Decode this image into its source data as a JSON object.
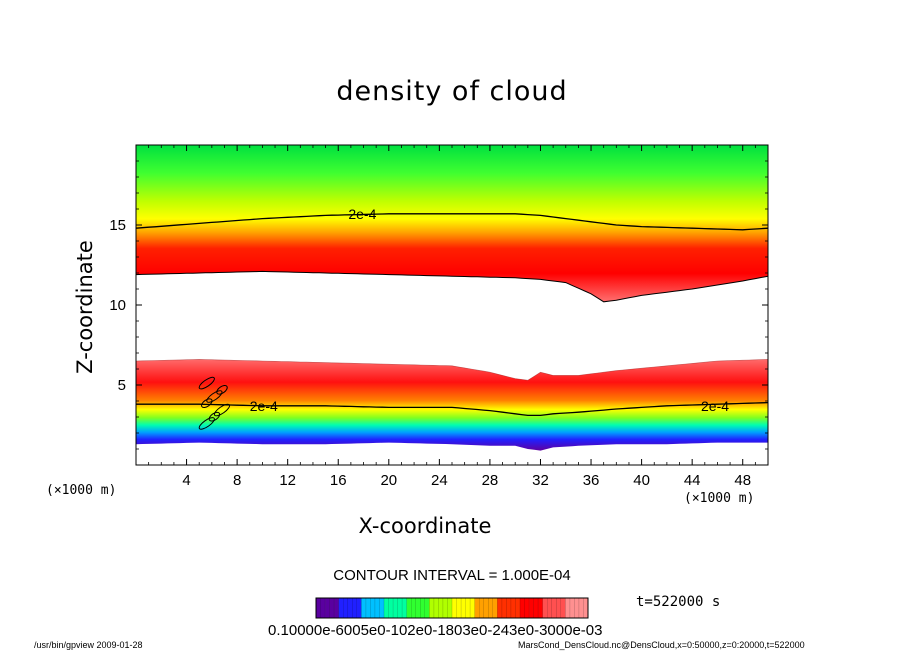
{
  "chart_data": {
    "type": "heatmap",
    "title": "density of cloud",
    "xlabel": "X-coordinate",
    "ylabel": "Z-coordinate",
    "x_unit": "(×1000 m)",
    "xlim": [
      0,
      50
    ],
    "ylim": [
      0,
      20
    ],
    "x_ticks": [
      4,
      8,
      12,
      16,
      20,
      24,
      28,
      32,
      36,
      40,
      44,
      48
    ],
    "y_ticks": [
      5,
      10,
      15
    ],
    "contour_interval": "CONTOUR INTERVAL = 1.000E-04",
    "contour_labels": [
      "2e-4",
      "2e-4",
      "2e-4"
    ],
    "time_label": "t=522000 s",
    "colorbar_labels": "0.10000e-6005e0-102e0-1803e0-243e0-3000e-03",
    "colorbar_range": [
      1e-07,
      0.0003
    ],
    "upper_layer": {
      "x": [
        0,
        5,
        10,
        15,
        20,
        25,
        30,
        32,
        34,
        36,
        37,
        38,
        40,
        44,
        48,
        50
      ],
      "z_contour_2e4": [
        14.8,
        15.1,
        15.4,
        15.6,
        15.7,
        15.7,
        15.7,
        15.6,
        15.4,
        15.2,
        15.1,
        15.0,
        14.9,
        14.8,
        14.7,
        14.8
      ],
      "z_bottom": [
        11.9,
        12.0,
        12.1,
        12.0,
        11.9,
        11.8,
        11.7,
        11.6,
        11.4,
        10.7,
        10.2,
        10.3,
        10.6,
        11.0,
        11.5,
        11.8
      ]
    },
    "lower_layer": {
      "x": [
        0,
        5,
        10,
        15,
        20,
        25,
        28,
        30,
        31,
        32,
        33,
        35,
        38,
        42,
        46,
        50
      ],
      "z_top": [
        6.5,
        6.6,
        6.5,
        6.4,
        6.3,
        6.2,
        5.8,
        5.4,
        5.3,
        5.8,
        5.6,
        5.6,
        5.9,
        6.2,
        6.5,
        6.6
      ],
      "z_contour_2e4": [
        3.8,
        3.8,
        3.7,
        3.7,
        3.6,
        3.6,
        3.4,
        3.2,
        3.1,
        3.1,
        3.2,
        3.3,
        3.5,
        3.7,
        3.8,
        3.9
      ],
      "z_bottom": [
        1.3,
        1.4,
        1.3,
        1.3,
        1.4,
        1.3,
        1.2,
        1.2,
        1.0,
        0.9,
        1.1,
        1.2,
        1.3,
        1.3,
        1.4,
        1.4
      ]
    }
  },
  "colors": {
    "band": [
      "#5a00a0",
      "#2020ff",
      "#00c0ff",
      "#00ffa0",
      "#30ff30",
      "#b0ff00",
      "#ffff00",
      "#ffa000",
      "#ff3000",
      "#ff0000",
      "#ff5050",
      "#ff9090"
    ]
  },
  "footer": {
    "left": "/usr/bin/gpview  2009-01-28",
    "right": "MarsCond_DensCloud.nc@DensCloud,x=0:50000,z=0:20000,t=522000"
  }
}
